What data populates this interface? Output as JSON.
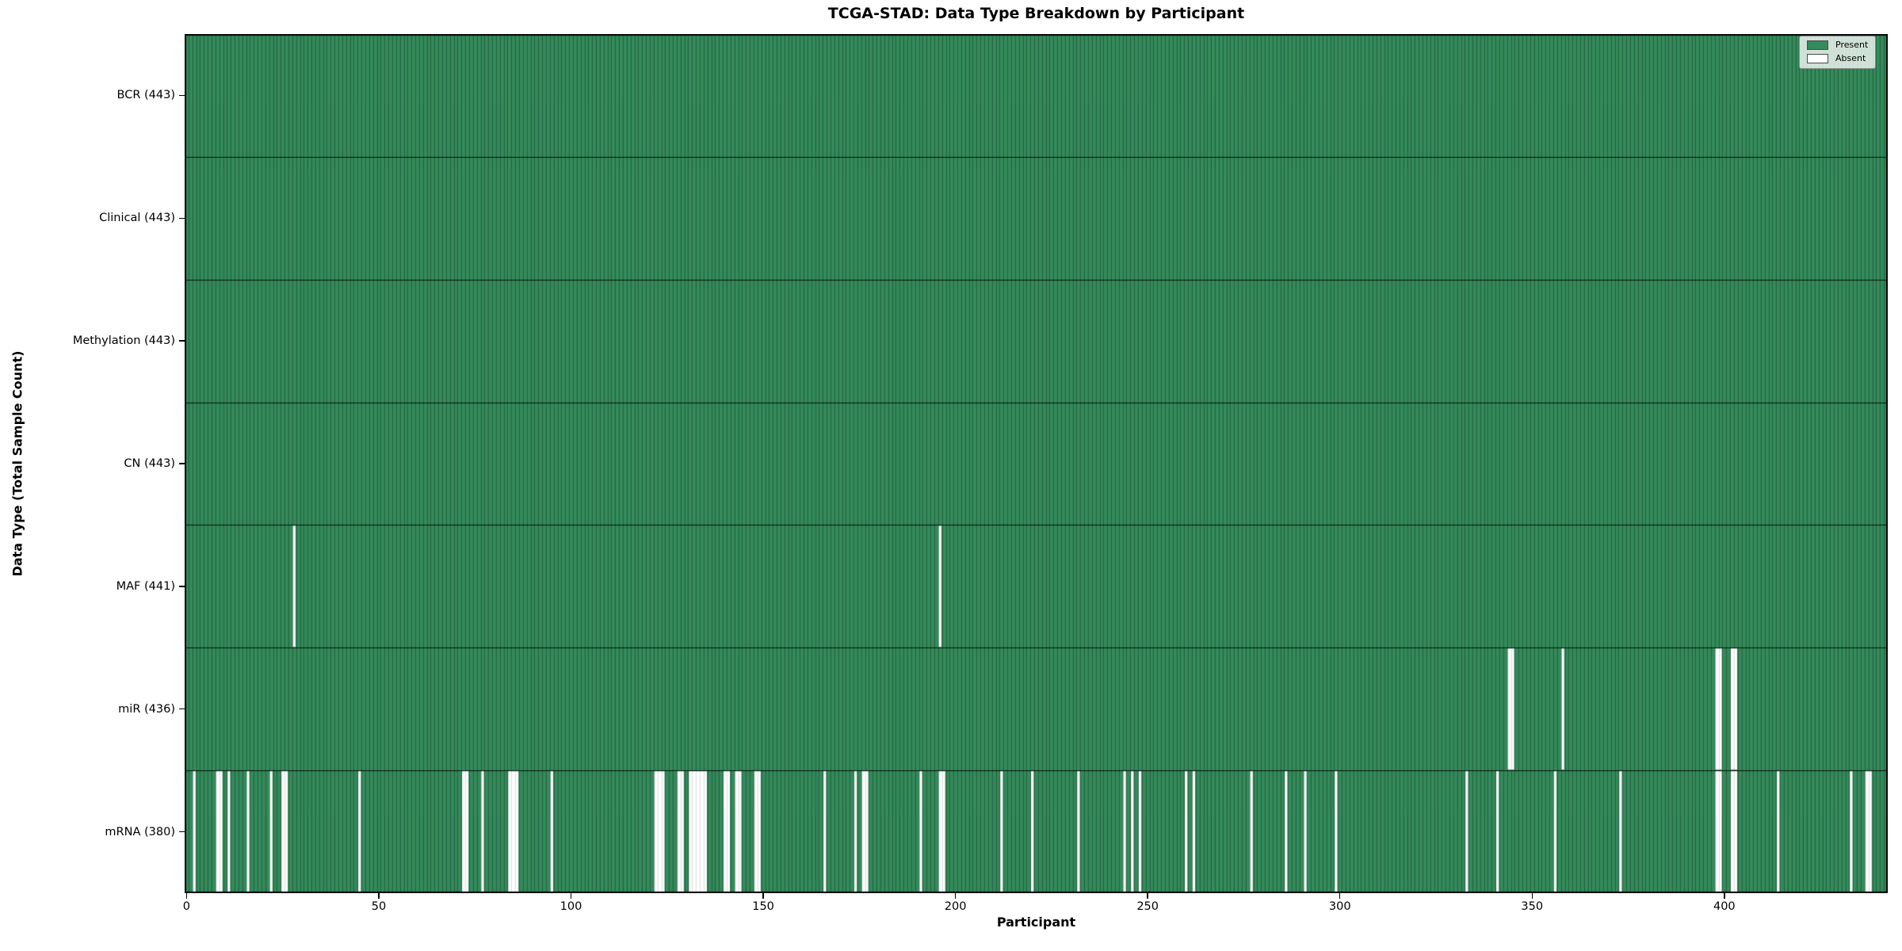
{
  "title": "TCGA-STAD: Data Type Breakdown by Participant",
  "x_axis": {
    "label": "Participant",
    "ticks": [
      "0",
      "50",
      "100",
      "150",
      "200",
      "250",
      "300",
      "350",
      "400"
    ],
    "tick_values": [
      0,
      50,
      100,
      150,
      200,
      250,
      300,
      350,
      400
    ]
  },
  "y_axis": {
    "label": "Data Type (Total Sample Count)"
  },
  "legend": {
    "items": [
      {
        "label": "Present",
        "color": "#348b5b"
      },
      {
        "label": "Absent",
        "color": "#ffffff"
      }
    ]
  },
  "colors": {
    "present": "#348b5b",
    "absent": "#ffffff",
    "cell_edge": "rgba(15,35,25,0.55)",
    "absent_edge": "rgba(0,0,0,0.18)",
    "row_border": "rgba(0,0,0,0.85)",
    "frame": "#000000"
  },
  "chart_data": {
    "type": "heatmap",
    "title": "TCGA-STAD: Data Type Breakdown by Participant",
    "xlabel": "Participant",
    "ylabel": "Data Type (Total Sample Count)",
    "legend_entries": [
      "Present",
      "Absent"
    ],
    "legend_position": "upper right",
    "grid": false,
    "n_participants": 443,
    "xlim": [
      0,
      443
    ],
    "x_ticks": [
      0,
      50,
      100,
      150,
      200,
      250,
      300,
      350,
      400
    ],
    "value_encoding": {
      "present": "green cell",
      "absent": "white cell"
    },
    "rows": [
      {
        "label": "BCR (443)",
        "data_type": "BCR",
        "present_count": 443,
        "absent_participants": []
      },
      {
        "label": "Clinical (443)",
        "data_type": "Clinical",
        "present_count": 443,
        "absent_participants": []
      },
      {
        "label": "Methylation (443)",
        "data_type": "Methylation",
        "present_count": 443,
        "absent_participants": []
      },
      {
        "label": "CN (443)",
        "data_type": "CN",
        "present_count": 443,
        "absent_participants": []
      },
      {
        "label": "MAF (441)",
        "data_type": "MAF",
        "present_count": 441,
        "absent_participants": [
          28,
          196
        ]
      },
      {
        "label": "miR (436)",
        "data_type": "miR",
        "present_count": 436,
        "absent_participants": [
          344,
          345,
          358,
          398,
          399,
          402,
          403
        ]
      },
      {
        "label": "mRNA (380)",
        "data_type": "mRNA",
        "present_count": 380,
        "absent_participants": [
          2,
          8,
          9,
          11,
          16,
          22,
          25,
          26,
          45,
          72,
          73,
          77,
          84,
          85,
          86,
          95,
          122,
          123,
          124,
          128,
          129,
          131,
          132,
          133,
          134,
          135,
          140,
          141,
          143,
          144,
          148,
          149,
          166,
          174,
          176,
          177,
          191,
          196,
          197,
          212,
          220,
          232,
          244,
          246,
          248,
          260,
          262,
          277,
          286,
          291,
          299,
          333,
          341,
          356,
          373,
          398,
          399,
          402,
          403,
          414,
          433,
          437,
          438
        ]
      }
    ]
  }
}
